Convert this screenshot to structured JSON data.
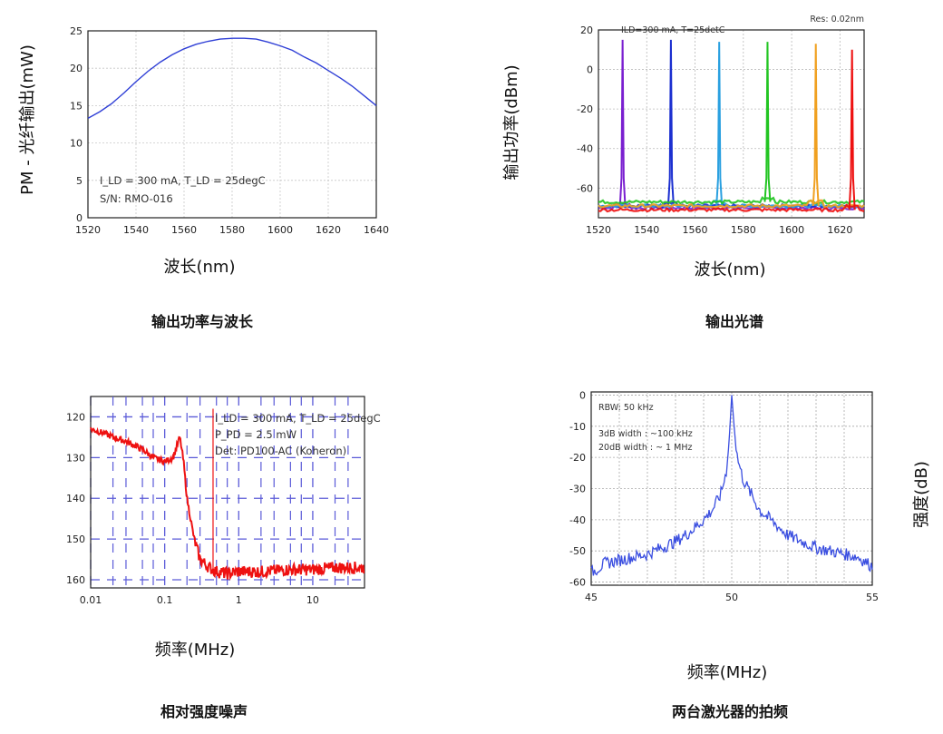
{
  "chart_data": [
    {
      "type": "line",
      "caption": "输出功率与波长",
      "xlabel": "波长(nm)",
      "ylabel": "PM - 光纤输出(mW)",
      "xlim": [
        1520,
        1640
      ],
      "ylim": [
        0,
        25
      ],
      "xticks": [
        1520,
        1540,
        1560,
        1580,
        1600,
        1620,
        1640
      ],
      "yticks": [
        0,
        5,
        10,
        15,
        20,
        25
      ],
      "grid": true,
      "annotations": [
        "I_LD = 300 mA, T_LD = 25degC",
        "S/N: RMO-016"
      ],
      "series": [
        {
          "color": "#2f3fd6",
          "x": [
            1520,
            1525,
            1530,
            1535,
            1540,
            1545,
            1550,
            1555,
            1560,
            1565,
            1570,
            1575,
            1580,
            1585,
            1590,
            1595,
            1600,
            1605,
            1610,
            1615,
            1620,
            1625,
            1630,
            1635,
            1640
          ],
          "y": [
            13.3,
            14.2,
            15.3,
            16.7,
            18.2,
            19.6,
            20.8,
            21.8,
            22.6,
            23.2,
            23.6,
            23.9,
            24.0,
            24.0,
            23.9,
            23.5,
            23.0,
            22.4,
            21.5,
            20.7,
            19.7,
            18.7,
            17.6,
            16.3,
            15.0
          ]
        }
      ]
    },
    {
      "type": "line",
      "caption": "输出光谱",
      "xlabel": "波长(nm)",
      "ylabel": "输出功率(dBm)",
      "xlim": [
        1520,
        1630
      ],
      "ylim": [
        -75,
        20
      ],
      "xticks": [
        1520,
        1540,
        1560,
        1580,
        1600,
        1620
      ],
      "yticks": [
        20,
        0,
        -20,
        -40,
        -60
      ],
      "grid": true,
      "annotations": [
        "ILD=300 mA, T=25detC",
        "Res: 0.02nm"
      ],
      "series": [
        {
          "color": "#7a1fd0",
          "peak_x": 1530,
          "peak_y": 15,
          "floor": -70
        },
        {
          "color": "#1b2fd0",
          "peak_x": 1550,
          "peak_y": 15,
          "floor": -69
        },
        {
          "color": "#2aa0e0",
          "peak_x": 1570,
          "peak_y": 14,
          "floor": -69
        },
        {
          "color": "#22c522",
          "peak_x": 1590,
          "peak_y": 14,
          "floor": -67
        },
        {
          "color": "#f0a020",
          "peak_x": 1610,
          "peak_y": 13,
          "floor": -69
        },
        {
          "color": "#ee1111",
          "peak_x": 1625,
          "peak_y": 10,
          "floor": -71
        }
      ]
    },
    {
      "type": "line",
      "caption": "相对强度噪声",
      "xlabel": "频率(MHz)",
      "xscale": "log",
      "xlim": [
        0.01,
        50
      ],
      "ylim": [
        -162,
        -115
      ],
      "xticks": [
        0.01,
        0.1,
        1,
        10
      ],
      "xticklabels": [
        "0.01",
        "0.1",
        "1",
        "10"
      ],
      "yticks": [
        -120,
        -130,
        -140,
        -150,
        -160
      ],
      "yticklabels": [
        "120",
        "130",
        "140",
        "150",
        "160"
      ],
      "grid": true,
      "annotations": [
        "I_LD = 300 mA, T_LD = 25degC",
        "P_PD = 2.5 mW",
        "Det: PD100-AC (Koheron)"
      ],
      "series": [
        {
          "color": "#ee1111",
          "x": [
            0.01,
            0.015,
            0.02,
            0.03,
            0.05,
            0.07,
            0.1,
            0.13,
            0.16,
            0.18,
            0.2,
            0.25,
            0.3,
            0.4,
            0.5,
            0.7,
            1,
            2,
            5,
            10,
            20,
            50
          ],
          "y": [
            -123,
            -124,
            -125,
            -126,
            -128,
            -130,
            -131,
            -130,
            -125,
            -131,
            -140,
            -150,
            -155,
            -157,
            -158,
            -158.5,
            -158,
            -158,
            -157.5,
            -157.5,
            -157,
            -157
          ]
        }
      ]
    },
    {
      "type": "line",
      "caption": "两台激光器的拍频",
      "xlabel": "频率(MHz)",
      "ylabel": "强度(dB)",
      "xlim": [
        45,
        55
      ],
      "ylim": [
        -61,
        1
      ],
      "xticks": [
        45,
        50,
        55
      ],
      "yticks": [
        0,
        -10,
        -20,
        -30,
        -40,
        -50,
        -60
      ],
      "grid": true,
      "annotations": [
        "RBW: 50 kHz",
        "3dB width : ~100 kHz",
        "20dB width : ~ 1 MHz"
      ],
      "series": [
        {
          "color": "#3a4ee0",
          "x": [
            45,
            45.5,
            46,
            46.5,
            47,
            47.5,
            48,
            48.5,
            49,
            49.3,
            49.6,
            49.8,
            49.9,
            50,
            50.1,
            50.2,
            50.4,
            50.7,
            51,
            51.5,
            52,
            52.5,
            53,
            53.5,
            54,
            54.5,
            55
          ],
          "y": [
            -57,
            -54,
            -53,
            -52,
            -51,
            -49,
            -47,
            -44,
            -40,
            -37,
            -32,
            -25,
            -16,
            0,
            -12,
            -20,
            -27,
            -32,
            -37,
            -41,
            -45,
            -47,
            -49,
            -50,
            -51,
            -52,
            -55
          ]
        }
      ]
    }
  ]
}
